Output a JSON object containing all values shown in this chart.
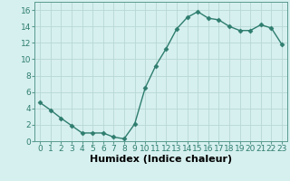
{
  "x": [
    0,
    1,
    2,
    3,
    4,
    5,
    6,
    7,
    8,
    9,
    10,
    11,
    12,
    13,
    14,
    15,
    16,
    17,
    18,
    19,
    20,
    21,
    22,
    23
  ],
  "y": [
    4.7,
    3.8,
    2.8,
    1.9,
    1.0,
    1.0,
    1.0,
    0.5,
    0.3,
    2.1,
    6.5,
    9.2,
    11.3,
    13.7,
    15.1,
    15.8,
    15.0,
    14.8,
    14.0,
    13.5,
    13.5,
    14.2,
    13.8,
    11.8
  ],
  "xlabel": "Humidex (Indice chaleur)",
  "ylim": [
    0,
    17
  ],
  "xlim_min": -0.5,
  "xlim_max": 23.5,
  "yticks": [
    0,
    2,
    4,
    6,
    8,
    10,
    12,
    14,
    16
  ],
  "xticks": [
    0,
    1,
    2,
    3,
    4,
    5,
    6,
    7,
    8,
    9,
    10,
    11,
    12,
    13,
    14,
    15,
    16,
    17,
    18,
    19,
    20,
    21,
    22,
    23
  ],
  "xtick_labels": [
    "0",
    "1",
    "2",
    "3",
    "4",
    "5",
    "6",
    "7",
    "8",
    "9",
    "10",
    "11",
    "12",
    "13",
    "14",
    "15",
    "16",
    "17",
    "18",
    "19",
    "20",
    "21",
    "22",
    "23"
  ],
  "line_color": "#2e7d6e",
  "marker": "D",
  "marker_size": 2.5,
  "bg_color": "#d6f0ef",
  "grid_color": "#b8d8d4",
  "tick_fontsize": 6.5,
  "xlabel_fontsize": 8,
  "linewidth": 1.0
}
